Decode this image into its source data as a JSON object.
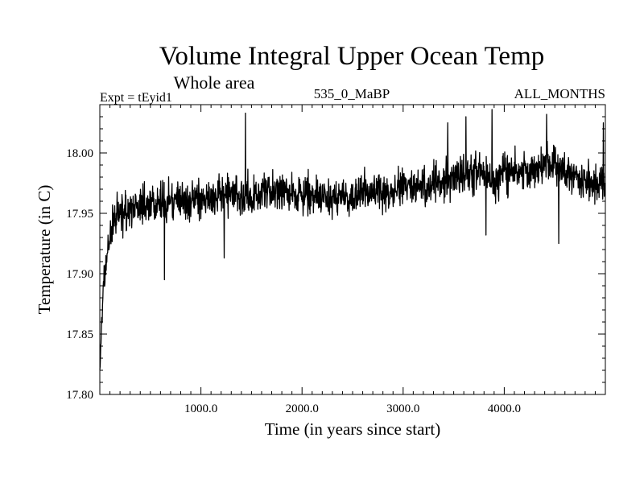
{
  "chart_data": {
    "type": "line",
    "title": "Volume Integral Upper Ocean Temp",
    "subtitle": "Whole area",
    "annotations": {
      "left": "Expt = tEyid1",
      "center": "535_0_MaBP",
      "right": "ALL_MONTHS"
    },
    "xlabel": "Time (in years since start)",
    "ylabel": "Temperature (in C)",
    "xlim": [
      0,
      5000
    ],
    "ylim": [
      17.8,
      18.04
    ],
    "x_ticks": [
      1000,
      2000,
      3000,
      4000
    ],
    "x_tick_labels": [
      "1000.0",
      "2000.0",
      "3000.0",
      "4000.0"
    ],
    "y_ticks": [
      17.8,
      17.85,
      17.9,
      17.95,
      18.0
    ],
    "y_tick_labels": [
      "17.80",
      "17.85",
      "17.90",
      "17.95",
      "18.00"
    ],
    "grid": false,
    "series": [
      {
        "name": "Volume integral upper ocean temperature",
        "color": "#000000",
        "points_shown": "approx. 5000 yearly values",
        "trend_x": [
          0,
          30,
          60,
          100,
          150,
          200,
          300,
          500,
          800,
          1000,
          1400,
          1800,
          2200,
          2600,
          3000,
          3500,
          3800,
          3900,
          4000,
          4200,
          4400,
          4600,
          4800,
          5000
        ],
        "trend_y": [
          17.82,
          17.88,
          17.91,
          17.93,
          17.945,
          17.95,
          17.955,
          17.958,
          17.96,
          17.962,
          17.965,
          17.968,
          17.963,
          17.966,
          17.972,
          17.978,
          17.985,
          17.975,
          17.985,
          17.985,
          17.99,
          17.985,
          17.975,
          17.975
        ],
        "noise_amplitude": 0.012,
        "spikes": [
          {
            "x": 1440,
            "y": 18.033
          },
          {
            "x": 3880,
            "y": 18.036
          },
          {
            "x": 4420,
            "y": 18.032
          },
          {
            "x": 3620,
            "y": 18.03
          },
          {
            "x": 3440,
            "y": 18.025
          },
          {
            "x": 4980,
            "y": 18.025
          },
          {
            "x": 640,
            "y": 17.895
          },
          {
            "x": 1230,
            "y": 17.913
          },
          {
            "x": 3820,
            "y": 17.932
          },
          {
            "x": 4540,
            "y": 17.925
          }
        ]
      }
    ]
  }
}
